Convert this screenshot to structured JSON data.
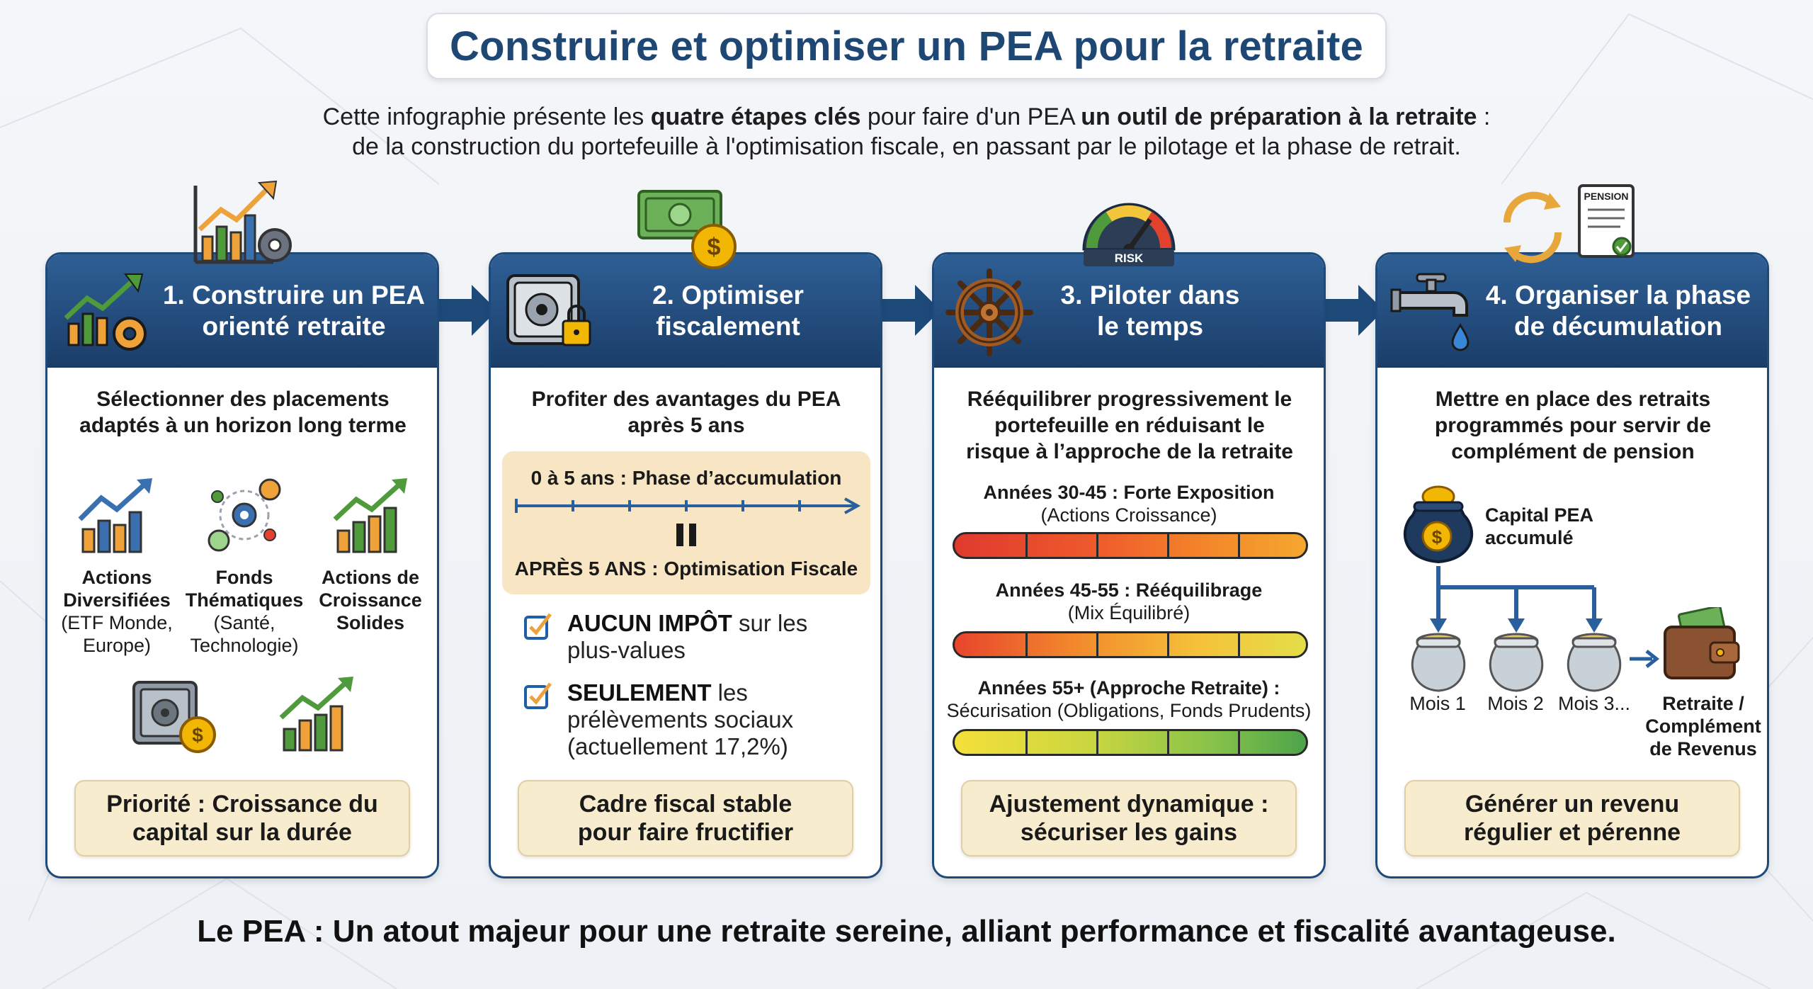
{
  "title": "Construire et optimiser un PEA pour la retraite",
  "intro": {
    "line1_a": "Cette infographie présente les ",
    "line1_b": "quatre étapes clés",
    "line1_c": " pour faire d'un PEA ",
    "line1_d": "un outil de préparation à la retraite",
    "line1_e": " :",
    "line2": "de la construction du portefeuille à l'optimisation fiscale, en passant par le pilotage et la phase de retrait."
  },
  "colors": {
    "header_blue": "#1f4774",
    "card_border": "#1e4a7a",
    "footer_fill": "#f8ecce",
    "phase_fill": "#f7e5c4",
    "check_blue": "#1f5fa8",
    "icon_green": "#4f9a3a",
    "icon_orange": "#f0a23a",
    "icon_gold": "#f2b705"
  },
  "steps": [
    {
      "title": "1. Construire un PEA orienté retraite",
      "title_line1": "1. Construire un PEA",
      "title_line2": "orienté retraite",
      "icon": "chart-gear-icon",
      "top_icon": "growth-chart-gear-icon",
      "subtitle_line1": "Sélectionner des placements",
      "subtitle_line2": "adaptés à un horizon long terme",
      "items": [
        {
          "name": "Actions",
          "name2": "Diversifiées",
          "detail1": "(ETF Monde,",
          "detail2": "Europe)",
          "icon": "growth-chart-icon"
        },
        {
          "name": "Fonds",
          "name2": "Thématiques",
          "detail1": "(Santé,",
          "detail2": "Technologie)",
          "icon": "theme-network-icon"
        },
        {
          "name": "Actions de",
          "name2": "Croissance",
          "detail1": "Solides",
          "detail2": "",
          "icon": "growth-chart-icon"
        }
      ],
      "extra_icons": [
        "safe-coin-icon",
        "growth-chart-icon"
      ],
      "footer_line1": "Priorité : Croissance du",
      "footer_line2": "capital sur la durée"
    },
    {
      "title": "2. Optimiser fiscalement",
      "title_line1": "2. Optimiser",
      "title_line2": "fiscalement",
      "icon": "safe-lock-icon",
      "top_icon": "banknote-coin-icon",
      "subtitle_line1": "Profiter des avantages du PEA",
      "subtitle_line2": "après 5 ans",
      "phase_top": "0 à 5 ans : Phase d’accumulation",
      "phase_bottom": "APRÈS 5 ANS : Optimisation Fiscale",
      "checks": [
        {
          "bold": "AUCUN IMPÔT",
          "rest1": " sur les",
          "rest2": "plus-values",
          "rest3": ""
        },
        {
          "bold": "SEULEMENT",
          "rest1": " les",
          "rest2": "prélèvements sociaux",
          "rest3": "(actuellement 17,2%)"
        }
      ],
      "footer_line1": "Cadre fiscal stable",
      "footer_line2": "pour faire fructifier"
    },
    {
      "title": "3. Piloter dans le temps",
      "title_line1": "3. Piloter dans",
      "title_line2": "le temps",
      "icon": "ship-wheel-icon",
      "top_icon": "risk-gauge-icon",
      "top_icon_label": "RISK",
      "subtitle_line1": "Rééquilibrer progressivement le",
      "subtitle_line2": "portefeuille en réduisant le",
      "subtitle_line3": "risque à l’approche de la retraite",
      "risk_levels": [
        {
          "title": "Années 30-45 : Forte Exposition",
          "sub": "(Actions Croissance)",
          "level": "high"
        },
        {
          "title": "Années 45-55 : Rééquilibrage",
          "sub": "(Mix Équilibré)",
          "level": "medium"
        },
        {
          "title": "Années 55+ (Approche Retraite) :",
          "sub": "Sécurisation (Obligations, Fonds Prudents)",
          "level": "low"
        }
      ],
      "footer_line1": "Ajustement dynamique :",
      "footer_line2": "sécuriser les gains"
    },
    {
      "title": "4. Organiser la phase de décumulation",
      "title_line1": "4. Organiser la phase",
      "title_line2": "de décumulation",
      "icon": "faucet-icon",
      "top_icon": "cycle-pension-doc-icon",
      "top_icon_label": "PENSION",
      "subtitle_line1": "Mettre en place des retraits",
      "subtitle_line2": "programmés pour servir de",
      "subtitle_line3": "complément de pension",
      "capital_label1": "Capital PEA",
      "capital_label2": "accumulé",
      "months": [
        "Mois 1",
        "Mois 2",
        "Mois 3..."
      ],
      "result_line1": "Retraite /",
      "result_line2": "Complément",
      "result_line3": "de Revenus",
      "footer_line1": "Générer un revenu",
      "footer_line2": "régulier et pérenne"
    }
  ],
  "conclusion": "Le PEA : Un atout majeur pour une retraite sereine, alliant performance et fiscalité avantageuse."
}
